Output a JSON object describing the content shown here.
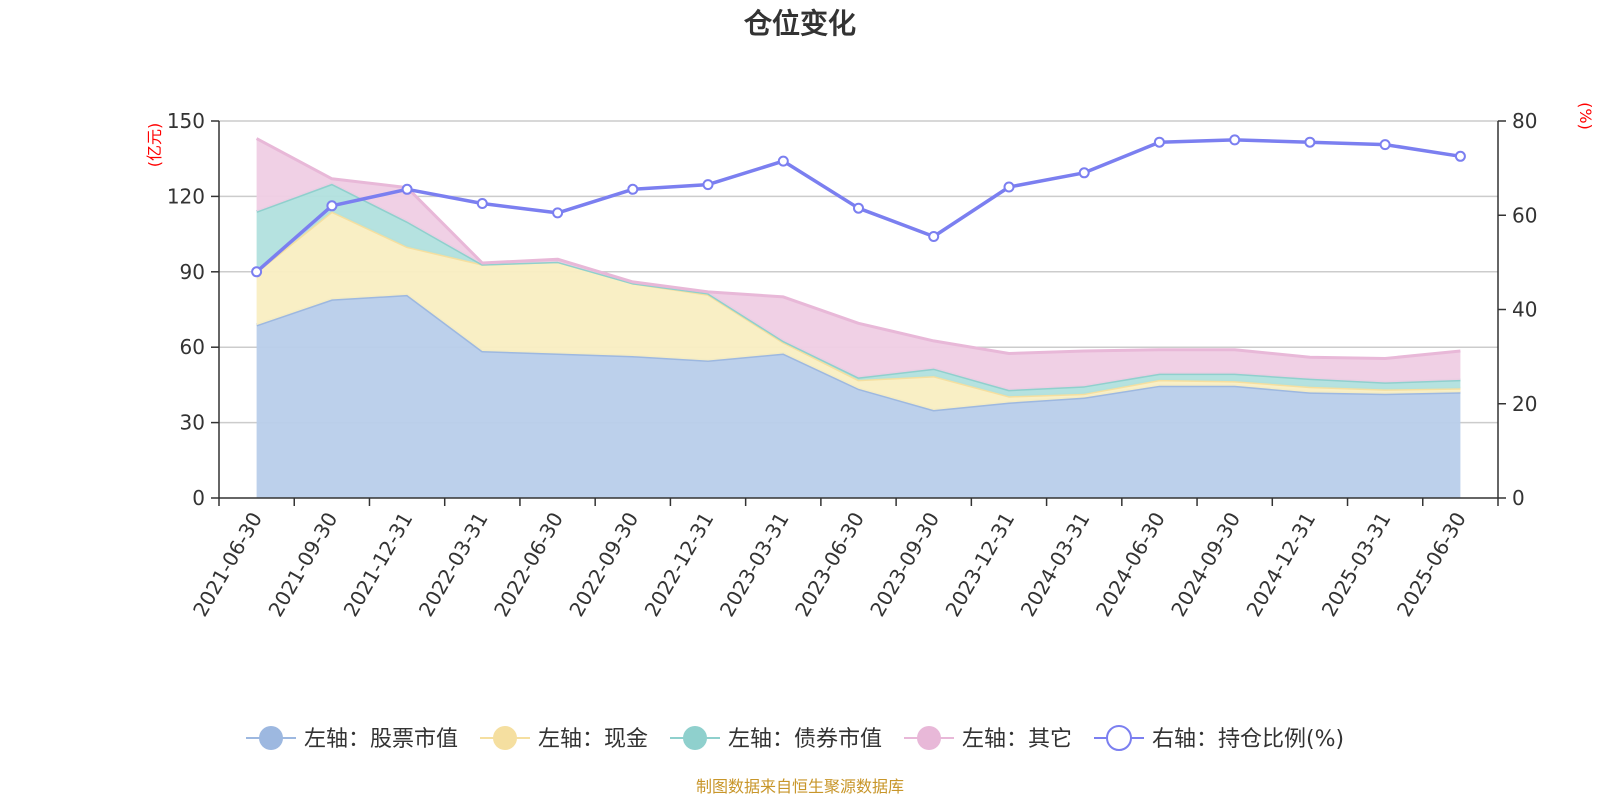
{
  "chart_data": {
    "type": "area",
    "title": "仓位变化",
    "x": [
      "2021-06-30",
      "2021-09-30",
      "2021-12-31",
      "2022-03-31",
      "2022-06-30",
      "2022-09-30",
      "2022-12-31",
      "2023-03-31",
      "2023-06-30",
      "2023-09-30",
      "2023-12-31",
      "2024-03-31",
      "2024-06-30",
      "2024-09-30",
      "2024-12-31",
      "2025-03-31",
      "2025-06-30"
    ],
    "left_axis": {
      "unit": "(亿元)",
      "ylim": [
        0,
        150
      ],
      "ticks": [
        0,
        30,
        60,
        90,
        120,
        150
      ]
    },
    "right_axis": {
      "unit": "(%)",
      "ylim": [
        0,
        80
      ],
      "ticks": [
        0,
        20,
        40,
        60,
        80
      ]
    },
    "stacked_series": [
      {
        "name": "左轴：股票市值",
        "color": "#9db8e0",
        "fill": "#b8cdea",
        "values": [
          68.8,
          79.0,
          80.8,
          58.5,
          57.5,
          56.5,
          54.7,
          57.5,
          43.5,
          35.0,
          38.0,
          40.0,
          44.7,
          44.7,
          42.0,
          41.5,
          42.1
        ]
      },
      {
        "name": "左轴：现金",
        "color": "#f5dfa0",
        "fill": "#f9eec2",
        "values": [
          21.2,
          35.0,
          19.2,
          34.5,
          36.5,
          29.0,
          26.3,
          4.5,
          3.5,
          13.5,
          2.5,
          1.5,
          2.3,
          1.8,
          2.3,
          1.7,
          1.6
        ]
      },
      {
        "name": "左轴：债券市值",
        "color": "#8fd0cd",
        "fill": "#b1e0de",
        "values": [
          24.0,
          11.0,
          10.0,
          0.0,
          0.0,
          0.0,
          0.5,
          0.5,
          1.0,
          3.0,
          2.5,
          3.0,
          2.5,
          3.0,
          3.2,
          2.8,
          3.3
        ]
      },
      {
        "name": "左轴：其它",
        "color": "#e8b8d8",
        "fill": "#efcde4",
        "values": [
          29.0,
          2.0,
          13.5,
          0.5,
          1.0,
          0.5,
          0.5,
          17.5,
          21.5,
          11.0,
          14.5,
          14.0,
          9.5,
          9.5,
          8.5,
          9.5,
          11.5
        ]
      }
    ],
    "line_series": {
      "name": "右轴：持仓比例(%)",
      "color": "#7b7ff0",
      "values": [
        48.0,
        62.0,
        65.5,
        62.5,
        60.5,
        65.5,
        66.5,
        71.5,
        61.5,
        55.5,
        66.0,
        69.0,
        75.5,
        76.0,
        75.5,
        75.0,
        72.5
      ]
    }
  },
  "legend": [
    {
      "label": "左轴：股票市值",
      "color": "#9db8e0",
      "kind": "filled"
    },
    {
      "label": "左轴：现金",
      "color": "#f5dfa0",
      "kind": "filled"
    },
    {
      "label": "左轴：债券市值",
      "color": "#8fd0cd",
      "kind": "filled"
    },
    {
      "label": "左轴：其它",
      "color": "#e8b8d8",
      "kind": "filled"
    },
    {
      "label": "右轴：持仓比例(%)",
      "color": "#7b7ff0",
      "kind": "hollow"
    }
  ],
  "source": "制图数据来自恒生聚源数据库"
}
